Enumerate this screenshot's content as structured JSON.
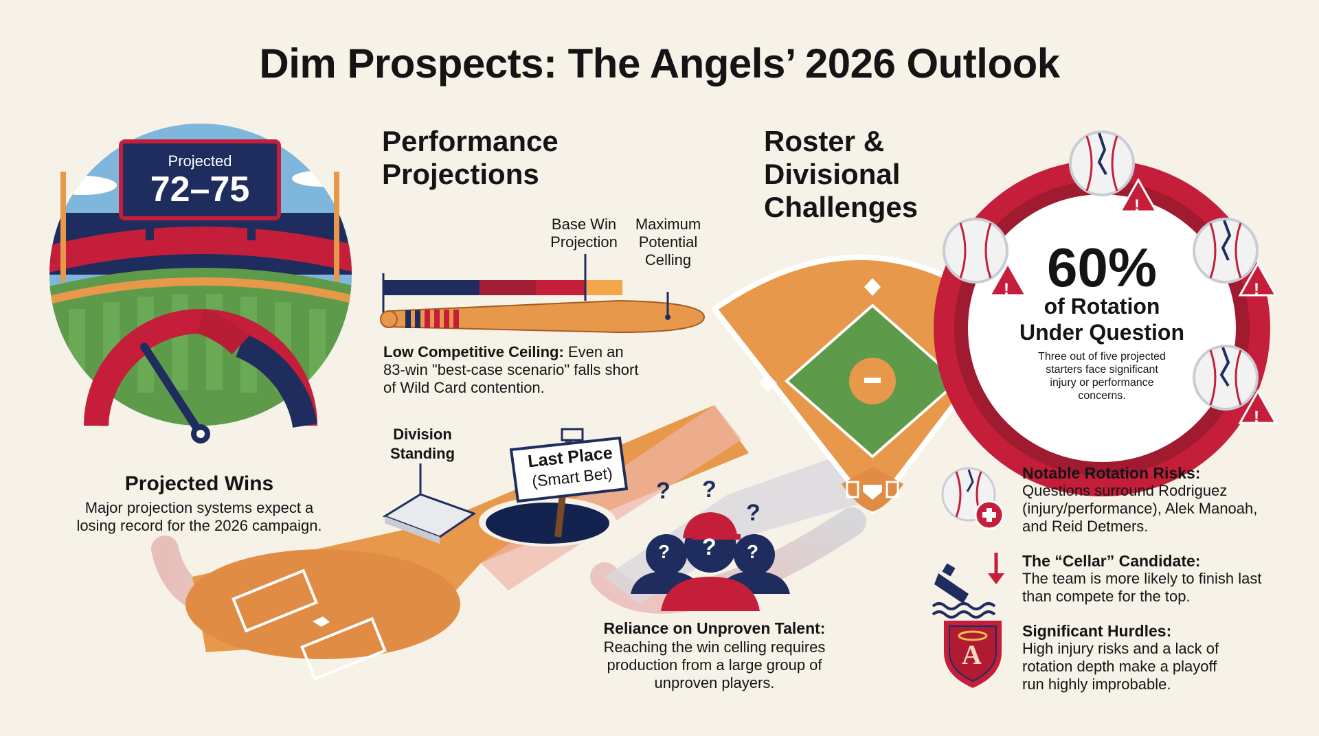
{
  "title": "Dim Prospects: The Angels’ 2026 Outlook",
  "colors": {
    "navy": "#1e2d5e",
    "red": "#c41e3a",
    "orange": "#e8984a",
    "green": "#5d9a4a",
    "cream": "#f6f2e8"
  },
  "scoreboard": {
    "label": "Projected",
    "value": "72–75"
  },
  "projected_wins": {
    "heading": "Projected Wins",
    "line1": "Major projection systems expect a",
    "line2": "losing record for the 2026 campaign."
  },
  "performance": {
    "heading_line1": "Performance",
    "heading_line2": "Projections",
    "base_label_line1": "Base Win",
    "base_label_line2": "Projection",
    "max_label_line1": "Maximum",
    "max_label_line2": "Potential",
    "max_label_line3": "Celling",
    "ceiling_bold": "Low Competitive Ceiling:",
    "ceiling_text1": " Even an",
    "ceiling_text2": "83-win \"best-case scenario\" falls short",
    "ceiling_text3": "of Wild Card contention."
  },
  "division": {
    "label_line1": "Division",
    "label_line2": "Standing",
    "sign_line1": "Last Place",
    "sign_line2": "(Smart Bet)"
  },
  "roster": {
    "heading_line1": "Roster &",
    "heading_line2": "Divisional",
    "heading_line3": "Challenges"
  },
  "unproven": {
    "heading": "Reliance on Unproven Talent:",
    "line1": "Reaching the win celling requires",
    "line2": "production from a large group of",
    "line3": "unproven players.",
    "question_mark": "?"
  },
  "rotation": {
    "percent": "60%",
    "line1": "of Rotation",
    "line2": "Under Question",
    "sub1": "Three out of five projected",
    "sub2": "starters face significant",
    "sub3": "injury or performance",
    "sub4": "concerns."
  },
  "notes": [
    {
      "icon": "injured-baseball-icon",
      "heading": "Notable Rotation Risks:",
      "line1": "Questions surround Rodriguez",
      "line2": "(injury/performance), Alek Manoah,",
      "line3": "and Reid Detmers."
    },
    {
      "icon": "sinking-ship-icon",
      "heading": "The “Cellar” Candidate:",
      "line1": "The team is more likely to finish last",
      "line2": "than compete for the top.",
      "line3": ""
    },
    {
      "icon": "angels-shield-icon",
      "heading": "Significant Hurdles:",
      "line1": "High injury risks and a lack of",
      "line2": "rotation depth make a playoff",
      "line3": "run highly improbable."
    }
  ],
  "logo_letter": "A",
  "warning_mark": "!"
}
